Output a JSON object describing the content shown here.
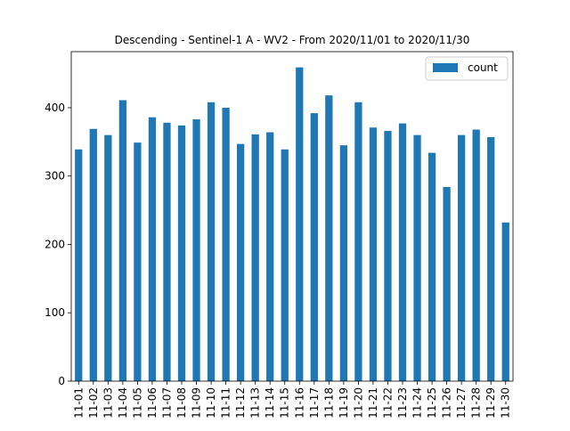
{
  "chart_data": {
    "type": "bar",
    "title": "Descending - Sentinel-1 A - WV2 - From 2020/11/01 to 2020/11/30",
    "xlabel": "",
    "ylabel": "",
    "categories": [
      "11-01",
      "11-02",
      "11-03",
      "11-04",
      "11-05",
      "11-06",
      "11-07",
      "11-08",
      "11-09",
      "11-10",
      "11-11",
      "11-12",
      "11-13",
      "11-14",
      "11-15",
      "11-16",
      "11-17",
      "11-18",
      "11-19",
      "11-20",
      "11-21",
      "11-22",
      "11-23",
      "11-24",
      "11-25",
      "11-26",
      "11-27",
      "11-28",
      "11-29",
      "11-30"
    ],
    "series": [
      {
        "name": "count",
        "color": "#1f77b4",
        "values": [
          339,
          369,
          360,
          411,
          349,
          386,
          378,
          374,
          383,
          408,
          400,
          347,
          361,
          364,
          339,
          459,
          392,
          418,
          345,
          408,
          371,
          366,
          377,
          360,
          334,
          284,
          360,
          368,
          357,
          232
        ]
      }
    ],
    "ylim": [
      0,
      482
    ],
    "yticks": [
      0,
      100,
      200,
      300,
      400
    ],
    "grid": false,
    "legend_position": "top-right"
  }
}
